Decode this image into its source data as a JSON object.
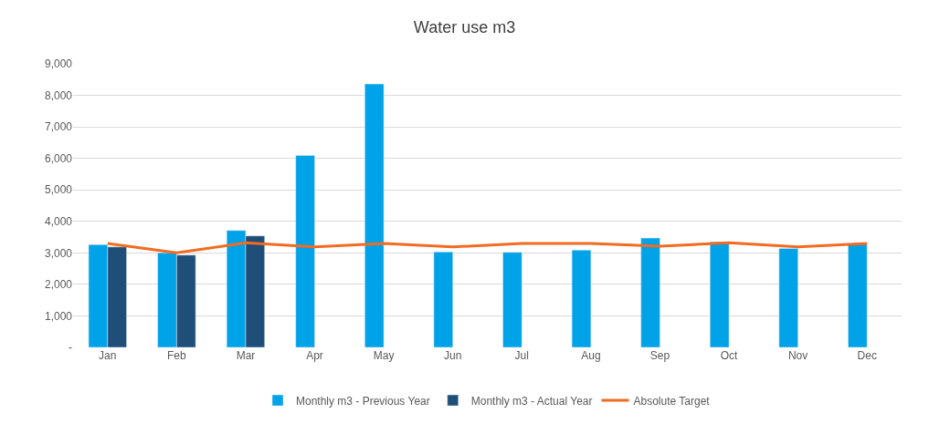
{
  "chart_data": {
    "type": "bar",
    "title": "Water use m3",
    "categories": [
      "Jan",
      "Feb",
      "Mar",
      "Apr",
      "May",
      "Jun",
      "Jul",
      "Aug",
      "Sep",
      "Oct",
      "Nov",
      "Dec"
    ],
    "series": [
      {
        "name": "Monthly m3 - Previous Year",
        "color": "#00a2e8",
        "values": [
          3260,
          3000,
          3710,
          6090,
          8360,
          3030,
          3020,
          3090,
          3470,
          3350,
          3140,
          3280
        ]
      },
      {
        "name": "Monthly m3 - Actual Year",
        "color": "#1f4e79",
        "values": [
          3190,
          2930,
          3540,
          null,
          null,
          null,
          null,
          null,
          null,
          null,
          null,
          null
        ]
      },
      {
        "name": "Absolute Target",
        "type": "line",
        "color": "#f26b21",
        "values": [
          3300,
          3000,
          3320,
          3190,
          3300,
          3190,
          3300,
          3300,
          3210,
          3320,
          3190,
          3300
        ]
      }
    ],
    "ylim": [
      0,
      9000
    ],
    "yticks": [
      {
        "value": 0,
        "label": "-"
      },
      {
        "value": 1000,
        "label": "1,000"
      },
      {
        "value": 2000,
        "label": "2,000"
      },
      {
        "value": 3000,
        "label": "3,000"
      },
      {
        "value": 4000,
        "label": "4,000"
      },
      {
        "value": 5000,
        "label": "5,000"
      },
      {
        "value": 6000,
        "label": "6,000"
      },
      {
        "value": 7000,
        "label": "7,000"
      },
      {
        "value": 8000,
        "label": "8,000"
      },
      {
        "value": 9000,
        "label": "9,000"
      }
    ],
    "grid": "y",
    "legend": "bottom",
    "marker": "none",
    "line_style": "solid"
  }
}
